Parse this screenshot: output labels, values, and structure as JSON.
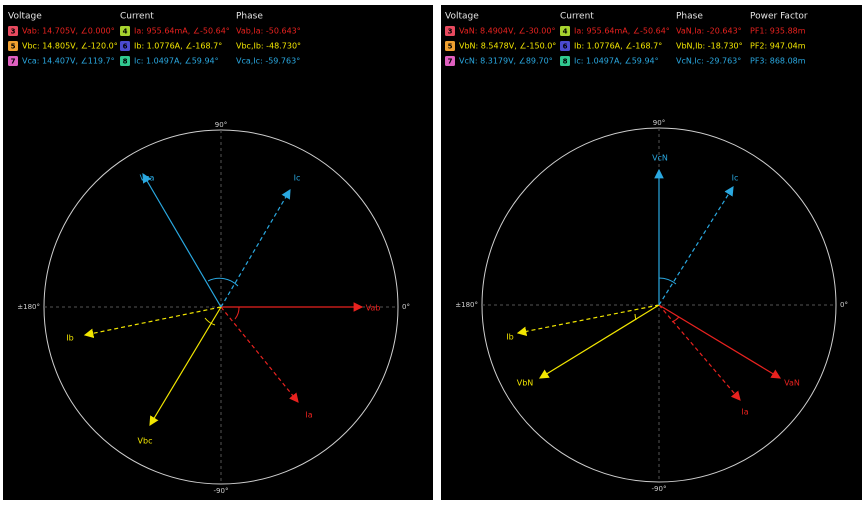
{
  "panels": [
    {
      "headers": [
        "Voltage",
        "Current",
        "Phase"
      ],
      "rows": [
        {
          "voltage_badge": "3",
          "voltage": "Vab: 14.705V, ∠0.000°",
          "current_badge": "4",
          "current": "Ia: 955.64mA, ∠-50.64°",
          "phase": "Vab,Ia: -50.643°"
        },
        {
          "voltage_badge": "5",
          "voltage": "Vbc: 14.805V, ∠-120.0°",
          "current_badge": "6",
          "current": "Ib: 1.0776A, ∠-168.7°",
          "phase": "Vbc,Ib: -48.730°"
        },
        {
          "voltage_badge": "7",
          "voltage": "Vca: 14.407V, ∠119.7°",
          "current_badge": "8",
          "current": "Ic: 1.0497A, ∠59.94°",
          "phase": "Vca,Ic: -59.763°"
        }
      ],
      "axis_labels": {
        "top": "90°",
        "bottom": "-90°",
        "left": "±180°",
        "right": "0°"
      },
      "vectors": [
        "Vab",
        "Ia",
        "Vbc",
        "Ib",
        "Vca",
        "Ic"
      ]
    },
    {
      "headers": [
        "Voltage",
        "Current",
        "Phase",
        "Power Factor"
      ],
      "rows": [
        {
          "voltage_badge": "3",
          "voltage": "VaN: 8.4904V, ∠-30.00°",
          "current_badge": "4",
          "current": "Ia: 955.64mA, ∠-50.64°",
          "phase": "VaN,Ia: -20.643°",
          "power_factor": "PF1: 935.88m"
        },
        {
          "voltage_badge": "5",
          "voltage": "VbN: 8.5478V, ∠-150.0°",
          "current_badge": "6",
          "current": "Ib: 1.0776A, ∠-168.7°",
          "phase": "VbN,Ib: -18.730°",
          "power_factor": "PF2: 947.04m"
        },
        {
          "voltage_badge": "7",
          "voltage": "VcN: 8.3179V, ∠89.70°",
          "current_badge": "8",
          "current": "Ic: 1.0497A, ∠59.94°",
          "phase": "VcN,Ic: -29.763°",
          "power_factor": "PF3: 868.08m"
        }
      ],
      "axis_labels": {
        "top": "90°",
        "bottom": "-90°",
        "left": "±180°",
        "right": "0°"
      },
      "vectors": [
        "VaN",
        "Ia",
        "VbN",
        "Ib",
        "VcN",
        "Ic"
      ]
    }
  ]
}
